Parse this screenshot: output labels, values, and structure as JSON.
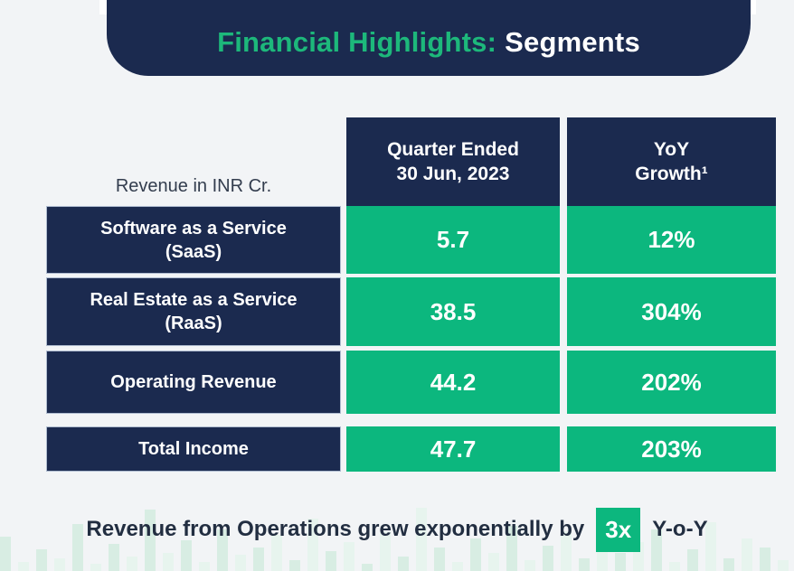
{
  "banner": {
    "title_green": "Financial Highlights:",
    "title_white": "Segments"
  },
  "table": {
    "corner_label": "Revenue in INR Cr.",
    "col_headers": [
      {
        "line1": "Quarter Ended",
        "line2": "30 Jun, 2023"
      },
      {
        "line1": "YoY",
        "line2": "Growth¹"
      }
    ],
    "rows": [
      {
        "label_line1": "Software as a Service",
        "label_line2": "(SaaS)",
        "value": "5.7",
        "growth": "12%"
      },
      {
        "label_line1": "Real Estate as a Service",
        "label_line2": "(RaaS)",
        "value": "38.5",
        "growth": "304%"
      },
      {
        "label_line1": "Operating Revenue",
        "label_line2": "",
        "value": "44.2",
        "growth": "202%"
      }
    ],
    "total_row": {
      "label": "Total Income",
      "value": "47.7",
      "growth": "203%"
    }
  },
  "footer": {
    "text_before": "Revenue from Operations grew exponentially by",
    "badge": "3x",
    "text_after": "Y-o-Y",
    "decorative_bar_heights": [
      38,
      10,
      24,
      14,
      52,
      8,
      30,
      16,
      68,
      20,
      34,
      10,
      46,
      18,
      26,
      40,
      12,
      58,
      22,
      32,
      8,
      44,
      16,
      70,
      26,
      10,
      36,
      20,
      50,
      12,
      28,
      44,
      14,
      62,
      20,
      32,
      46,
      10,
      24,
      54,
      14,
      36,
      26,
      12
    ]
  },
  "colors": {
    "navy": "#1B2A4F",
    "green": "#0CB77E",
    "title_green": "#1DB87B",
    "background": "#F2F4F6",
    "bar_light": "#D8EDE3",
    "bar_lighter": "#E7F4EE"
  }
}
